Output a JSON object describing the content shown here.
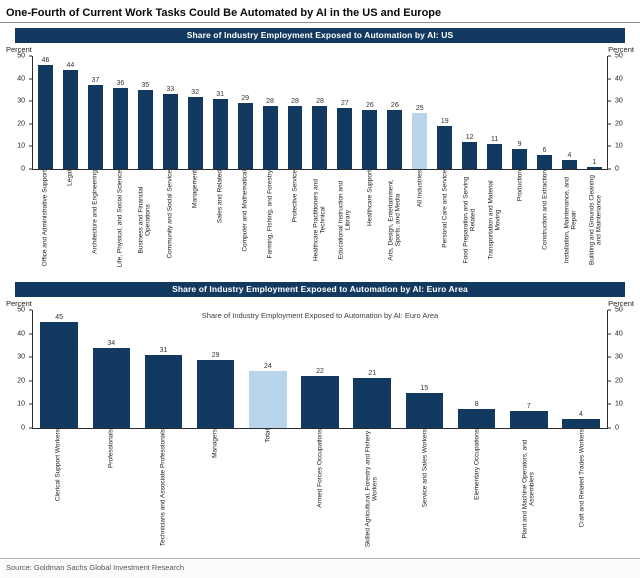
{
  "page": {
    "title": "One-Fourth of Current Work Tasks Could Be Automated by AI in the US and Europe",
    "source": "Source: Goldman Sachs Global Investment Research"
  },
  "colors": {
    "bar_navy": "#12395f",
    "bar_highlight": "#b8d5ec",
    "band_background": "#12395f",
    "band_text": "#ffffff"
  },
  "chart_data": [
    {
      "type": "bar",
      "band_title": "Share of Industry Employment Exposed to Automation by AI: US",
      "ylabel_left": "Percent",
      "ylabel_right": "Percent",
      "ylim": [
        0,
        50
      ],
      "yticks": [
        0,
        10,
        20,
        30,
        40,
        50
      ],
      "grid": false,
      "legend": "none",
      "categories": [
        "Office and Administrative Support",
        "Legal",
        "Architecture and Engineering",
        "Life, Physical, and Social Science",
        "Business and Financial Operations",
        "Community and Social Service",
        "Management",
        "Sales and Related",
        "Computer and Mathematical",
        "Farming, Fishing, and Forestry",
        "Protective Service",
        "Healthcare Practitioners and Technical",
        "Educational Instruction and Library",
        "Healthcare Support",
        "Arts, Design, Entertainment, Sports, and Media",
        "All Industries",
        "Personal Care and Service",
        "Food Preparation and Serving Related",
        "Transportation and Material Moving",
        "Production",
        "Construction and Extraction",
        "Installation, Maintenance, and Repair",
        "Building and Grounds Cleaning and Maintenance"
      ],
      "values": [
        46,
        44,
        37,
        36,
        35,
        33,
        32,
        31,
        29,
        28,
        28,
        28,
        27,
        26,
        26,
        25,
        19,
        12,
        11,
        9,
        6,
        4,
        1
      ],
      "highlight_index": 15,
      "highlight_label": "All Industries"
    },
    {
      "type": "bar",
      "band_title": "Share of Industry Employment Exposed to Automation by AI: Euro Area",
      "inner_title": "Share of Industry Employment Exposed to Automation by AI: Euro Area",
      "ylabel_left": "Percent",
      "ylabel_right": "Percent",
      "ylim": [
        0,
        50
      ],
      "yticks": [
        0,
        10,
        20,
        30,
        40,
        50
      ],
      "grid": false,
      "legend": "none",
      "categories": [
        "Clerical Support Workers",
        "Professionals",
        "Technicians and Associate Professionals",
        "Managers",
        "Total",
        "Armed Forces Occupations",
        "Skilled Agricultural, Forestry and Fishery Workers",
        "Service and Sales Workers",
        "Elementary Occupations",
        "Plant and Machine Operators, and Assemblers",
        "Craft and Related Trades Workers"
      ],
      "values": [
        45,
        34,
        31,
        29,
        24,
        22,
        21,
        15,
        8,
        7,
        4
      ],
      "highlight_index": 4,
      "highlight_label": "Total"
    }
  ]
}
